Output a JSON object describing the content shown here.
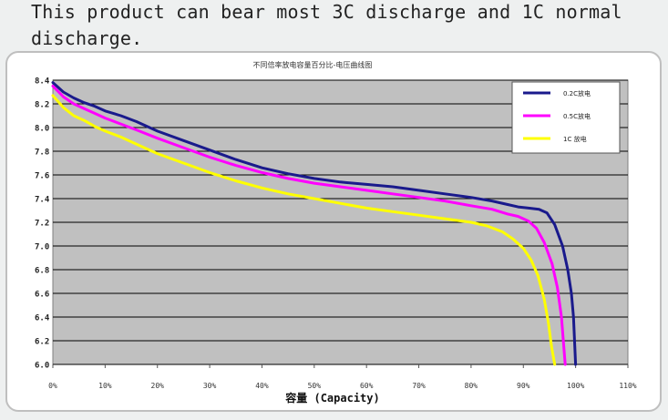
{
  "caption": {
    "line1": "This product can bear most 3C discharge and 1C normal",
    "line2": "discharge."
  },
  "chart_data": {
    "type": "line",
    "title": "不同倍率放电容量百分比-电压曲线图",
    "xlabel": "容量 (Capacity)",
    "ylabel": "",
    "xlim": [
      0,
      110
    ],
    "ylim": [
      6.0,
      8.4
    ],
    "x_tick_labels": [
      "0%",
      "10%",
      "20%",
      "30%",
      "40%",
      "50%",
      "60%",
      "70%",
      "80%",
      "90%",
      "100%",
      "110%"
    ],
    "y_tick_labels": [
      "6.0",
      "6.2",
      "6.4",
      "6.6",
      "6.8",
      "7.0",
      "7.2",
      "7.4",
      "7.6",
      "7.8",
      "8.0",
      "8.2",
      "8.4"
    ],
    "grid": true,
    "legend_position": "top-right",
    "plot_background": "#c0c0c0",
    "series": [
      {
        "name": "0.2C放电",
        "color": "#1a1a8c",
        "points": [
          [
            0,
            8.38
          ],
          [
            2,
            8.3
          ],
          [
            4,
            8.25
          ],
          [
            6,
            8.21
          ],
          [
            8,
            8.18
          ],
          [
            10,
            8.14
          ],
          [
            13,
            8.1
          ],
          [
            16,
            8.05
          ],
          [
            20,
            7.97
          ],
          [
            25,
            7.89
          ],
          [
            30,
            7.81
          ],
          [
            35,
            7.73
          ],
          [
            40,
            7.66
          ],
          [
            45,
            7.61
          ],
          [
            50,
            7.57
          ],
          [
            55,
            7.54
          ],
          [
            60,
            7.52
          ],
          [
            65,
            7.5
          ],
          [
            70,
            7.47
          ],
          [
            75,
            7.44
          ],
          [
            80,
            7.41
          ],
          [
            84,
            7.38
          ],
          [
            87,
            7.35
          ],
          [
            89,
            7.33
          ],
          [
            91,
            7.32
          ],
          [
            93,
            7.31
          ],
          [
            94.5,
            7.28
          ],
          [
            96,
            7.18
          ],
          [
            97.5,
            7.0
          ],
          [
            98.5,
            6.8
          ],
          [
            99.2,
            6.6
          ],
          [
            99.6,
            6.4
          ],
          [
            100,
            6.0
          ]
        ]
      },
      {
        "name": "0.5C放电",
        "color": "#ff00ff",
        "points": [
          [
            0,
            8.35
          ],
          [
            2,
            8.26
          ],
          [
            4,
            8.2
          ],
          [
            6,
            8.16
          ],
          [
            8,
            8.12
          ],
          [
            10,
            8.08
          ],
          [
            13,
            8.03
          ],
          [
            16,
            7.98
          ],
          [
            20,
            7.91
          ],
          [
            25,
            7.83
          ],
          [
            30,
            7.75
          ],
          [
            35,
            7.68
          ],
          [
            40,
            7.62
          ],
          [
            45,
            7.57
          ],
          [
            50,
            7.53
          ],
          [
            55,
            7.5
          ],
          [
            60,
            7.47
          ],
          [
            65,
            7.44
          ],
          [
            70,
            7.41
          ],
          [
            75,
            7.38
          ],
          [
            80,
            7.34
          ],
          [
            84,
            7.31
          ],
          [
            87,
            7.27
          ],
          [
            89,
            7.25
          ],
          [
            91,
            7.21
          ],
          [
            92.5,
            7.15
          ],
          [
            94,
            7.03
          ],
          [
            95.5,
            6.85
          ],
          [
            96.5,
            6.65
          ],
          [
            97.3,
            6.4
          ],
          [
            98,
            6.0
          ]
        ]
      },
      {
        "name": "1C 放电",
        "color": "#ffff00",
        "points": [
          [
            0,
            8.27
          ],
          [
            2,
            8.17
          ],
          [
            4,
            8.1
          ],
          [
            6,
            8.06
          ],
          [
            8,
            8.01
          ],
          [
            10,
            7.97
          ],
          [
            13,
            7.92
          ],
          [
            16,
            7.86
          ],
          [
            20,
            7.78
          ],
          [
            25,
            7.7
          ],
          [
            30,
            7.62
          ],
          [
            35,
            7.55
          ],
          [
            40,
            7.49
          ],
          [
            45,
            7.44
          ],
          [
            50,
            7.4
          ],
          [
            55,
            7.36
          ],
          [
            60,
            7.32
          ],
          [
            65,
            7.29
          ],
          [
            70,
            7.26
          ],
          [
            75,
            7.23
          ],
          [
            80,
            7.2
          ],
          [
            83,
            7.17
          ],
          [
            86,
            7.12
          ],
          [
            88,
            7.06
          ],
          [
            90,
            6.98
          ],
          [
            91.5,
            6.88
          ],
          [
            92.8,
            6.75
          ],
          [
            94,
            6.55
          ],
          [
            94.8,
            6.35
          ],
          [
            95.4,
            6.15
          ],
          [
            96,
            6.0
          ]
        ]
      }
    ]
  }
}
